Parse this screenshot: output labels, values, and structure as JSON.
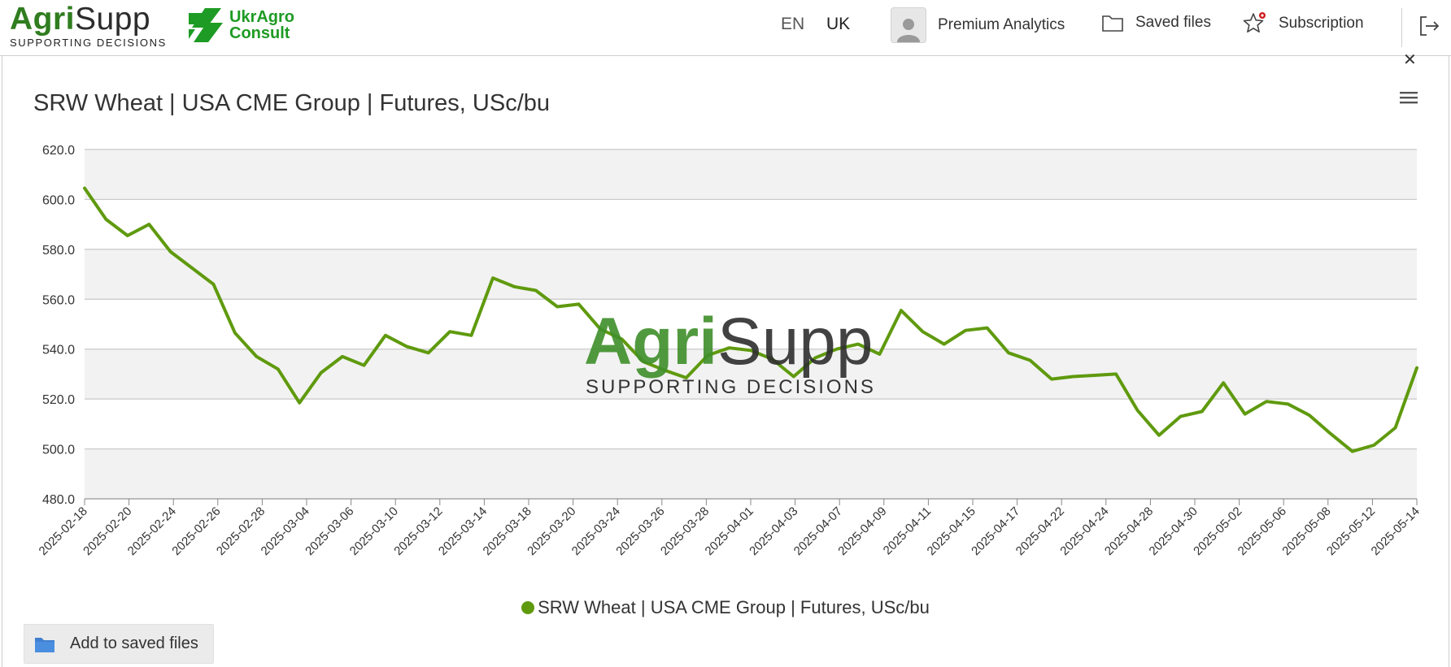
{
  "header": {
    "brand_green": "Agri",
    "brand_dark": "Supp",
    "brand_tagline": "SUPPORTING DECISIONS",
    "partner_line1": "UkrAgro",
    "partner_line2": "Consult",
    "lang_en": "EN",
    "lang_uk": "UK",
    "premium_label": "Premium Analytics",
    "saved_label": "Saved files",
    "subscription_label": "Subscription",
    "icons": [
      "user-avatar-icon",
      "folder-icon",
      "star-icon",
      "logout-icon",
      "hamburger-menu-icon",
      "close-icon"
    ]
  },
  "watermark": {
    "name_green": "Agri",
    "name_dark": "Supp",
    "tagline": "SUPPORTING DECISIONS"
  },
  "legend_label": "SRW Wheat | USA CME Group | Futures, USc/bu",
  "save_button_label": "Add to saved files",
  "colors": {
    "series": "#5f9a0e",
    "brand_green": "#2f7d1f",
    "partner_green": "#1e9b24",
    "band": "#f2f2f2",
    "grid": "#c8c8c8"
  },
  "chart_data": {
    "type": "line",
    "title": "SRW Wheat | USA CME Group | Futures, USc/bu",
    "xlabel": "",
    "ylabel": "",
    "ylim": [
      480,
      620
    ],
    "yticks": [
      "480.0",
      "500.0",
      "520.0",
      "540.0",
      "560.0",
      "580.0",
      "600.0",
      "620.0"
    ],
    "grid": true,
    "alternating_bands": true,
    "legend_position": "bottom",
    "x_tick_labels": [
      "2025-02-18",
      "2025-02-20",
      "2025-02-24",
      "2025-02-26",
      "2025-02-28",
      "2025-03-04",
      "2025-03-06",
      "2025-03-10",
      "2025-03-12",
      "2025-03-14",
      "2025-03-18",
      "2025-03-20",
      "2025-03-24",
      "2025-03-26",
      "2025-03-28",
      "2025-04-01",
      "2025-04-03",
      "2025-04-07",
      "2025-04-09",
      "2025-04-11",
      "2025-04-15",
      "2025-04-17",
      "2025-04-22",
      "2025-04-24",
      "2025-04-28",
      "2025-04-30",
      "2025-05-02",
      "2025-05-06",
      "2025-05-08",
      "2025-05-12",
      "2025-05-14"
    ],
    "series": [
      {
        "name": "SRW Wheat | USA CME Group | Futures, USc/bu",
        "color": "#5f9a0e",
        "values": [
          604.5,
          592.0,
          585.5,
          590.0,
          579.0,
          572.5,
          566.0,
          546.5,
          537.0,
          532.0,
          518.5,
          530.5,
          537.0,
          533.5,
          545.5,
          541.0,
          538.5,
          547.0,
          545.5,
          568.5,
          565.0,
          563.5,
          557.0,
          558.0,
          548.0,
          544.0,
          535.0,
          531.5,
          528.5,
          537.5,
          540.5,
          539.5,
          536.0,
          529.0,
          536.5,
          540.0,
          542.0,
          538.0,
          555.5,
          547.0,
          542.0,
          547.5,
          548.5,
          538.5,
          535.5,
          528.0,
          529.0,
          529.5,
          530.0,
          515.5,
          505.5,
          513.0,
          515.0,
          526.5,
          514.0,
          519.0,
          518.0,
          513.5,
          506.0,
          499.0,
          501.5,
          508.5,
          532.5
        ]
      }
    ]
  }
}
